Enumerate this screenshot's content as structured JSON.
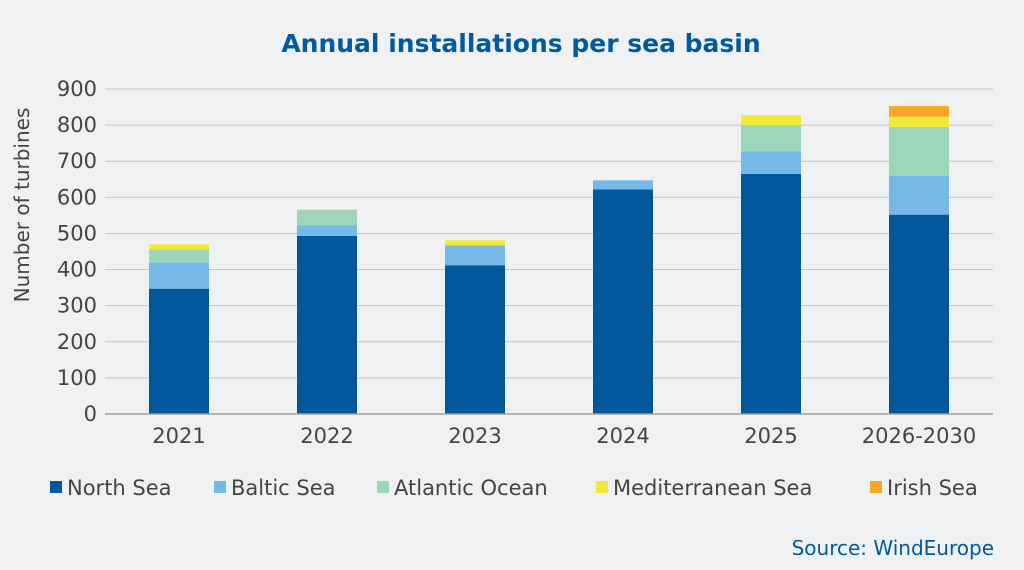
{
  "chart_data": {
    "type": "bar",
    "stacked": true,
    "title": "Annual installations per sea basin",
    "xlabel": "",
    "ylabel": "Number of turbines",
    "ylim": [
      0,
      900
    ],
    "yticks": [
      0,
      100,
      200,
      300,
      400,
      500,
      600,
      700,
      800,
      900
    ],
    "grid": true,
    "legend_position": "bottom",
    "categories": [
      "2021",
      "2022",
      "2023",
      "2024",
      "2025",
      "2026-2030"
    ],
    "series": [
      {
        "name": "North Sea",
        "color": "#00579b",
        "values": [
          347,
          493,
          412,
          622,
          665,
          552
        ]
      },
      {
        "name": "Baltic Sea",
        "color": "#76b9e6",
        "values": [
          73,
          30,
          55,
          25,
          62,
          108
        ]
      },
      {
        "name": "Atlantic Ocean",
        "color": "#9fd6b9",
        "values": [
          36,
          43,
          0,
          0,
          73,
          135
        ]
      },
      {
        "name": "Mediterranean Sea",
        "color": "#f1ea39",
        "values": [
          14,
          0,
          14,
          0,
          28,
          28
        ]
      },
      {
        "name": "Irish Sea",
        "color": "#f7a824",
        "values": [
          0,
          0,
          0,
          0,
          0,
          30
        ]
      }
    ],
    "source": "Source: WindEurope"
  }
}
